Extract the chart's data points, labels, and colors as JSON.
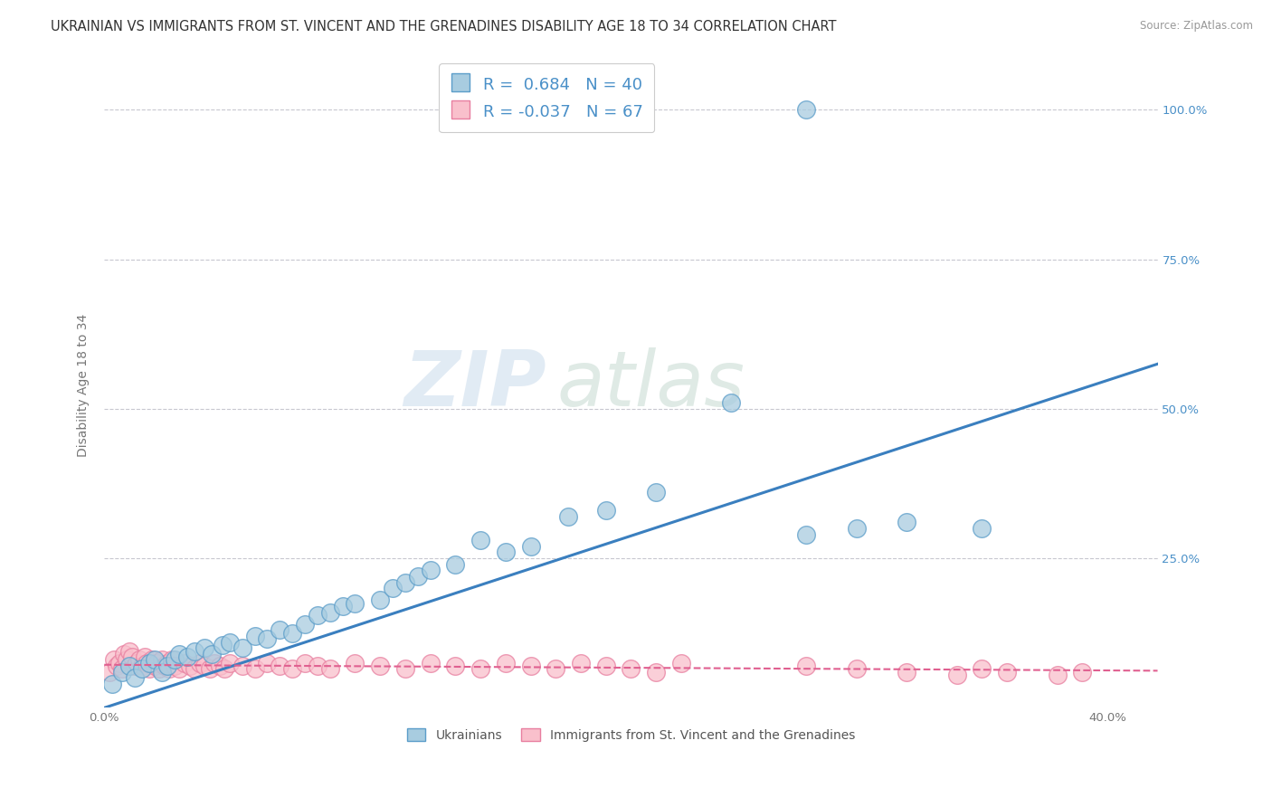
{
  "title": "UKRAINIAN VS IMMIGRANTS FROM ST. VINCENT AND THE GRENADINES DISABILITY AGE 18 TO 34 CORRELATION CHART",
  "source": "Source: ZipAtlas.com",
  "ylabel": "Disability Age 18 to 34",
  "xlim": [
    0.0,
    0.42
  ],
  "ylim": [
    0.0,
    1.08
  ],
  "xticks": [
    0.0,
    0.1,
    0.2,
    0.3,
    0.4
  ],
  "xticklabels": [
    "0.0%",
    "",
    "",
    "",
    "40.0%"
  ],
  "yticks": [
    0.0,
    0.25,
    0.5,
    0.75,
    1.0
  ],
  "right_yticklabels": [
    "",
    "25.0%",
    "50.0%",
    "75.0%",
    "100.0%"
  ],
  "blue_color": "#a8cce0",
  "pink_color": "#f9c0cc",
  "blue_edge_color": "#5b9dc9",
  "pink_edge_color": "#e87fa0",
  "blue_line_color": "#3a7fbf",
  "pink_line_color": "#e06090",
  "watermark_zip": "ZIP",
  "watermark_atlas": "atlas",
  "background_color": "#ffffff",
  "grid_color": "#c8c8d0",
  "title_fontsize": 10.5,
  "axis_fontsize": 10,
  "tick_fontsize": 9.5,
  "right_tick_color": "#4a90c8",
  "blue_scatter_x": [
    0.003,
    0.007,
    0.01,
    0.012,
    0.015,
    0.018,
    0.02,
    0.023,
    0.025,
    0.028,
    0.03,
    0.033,
    0.036,
    0.04,
    0.043,
    0.047,
    0.05,
    0.055,
    0.06,
    0.065,
    0.07,
    0.075,
    0.08,
    0.085,
    0.09,
    0.095,
    0.1,
    0.11,
    0.115,
    0.12,
    0.125,
    0.13,
    0.14,
    0.15,
    0.16,
    0.17,
    0.185,
    0.2,
    0.22,
    0.25,
    0.28,
    0.3,
    0.32,
    0.35,
    0.28
  ],
  "blue_scatter_y": [
    0.04,
    0.06,
    0.07,
    0.05,
    0.065,
    0.075,
    0.08,
    0.06,
    0.07,
    0.08,
    0.09,
    0.085,
    0.095,
    0.1,
    0.09,
    0.105,
    0.11,
    0.1,
    0.12,
    0.115,
    0.13,
    0.125,
    0.14,
    0.155,
    0.16,
    0.17,
    0.175,
    0.18,
    0.2,
    0.21,
    0.22,
    0.23,
    0.24,
    0.28,
    0.26,
    0.27,
    0.32,
    0.33,
    0.36,
    0.51,
    0.29,
    0.3,
    0.31,
    0.3,
    1.0
  ],
  "pink_scatter_x": [
    0.002,
    0.004,
    0.005,
    0.006,
    0.007,
    0.008,
    0.009,
    0.01,
    0.011,
    0.012,
    0.013,
    0.014,
    0.015,
    0.016,
    0.017,
    0.018,
    0.019,
    0.02,
    0.021,
    0.022,
    0.023,
    0.024,
    0.025,
    0.026,
    0.027,
    0.028,
    0.03,
    0.032,
    0.034,
    0.036,
    0.038,
    0.04,
    0.042,
    0.044,
    0.046,
    0.048,
    0.05,
    0.055,
    0.06,
    0.065,
    0.07,
    0.075,
    0.08,
    0.085,
    0.09,
    0.1,
    0.11,
    0.12,
    0.13,
    0.14,
    0.15,
    0.16,
    0.17,
    0.18,
    0.19,
    0.2,
    0.21,
    0.22,
    0.23,
    0.28,
    0.3,
    0.32,
    0.34,
    0.35,
    0.36,
    0.38,
    0.39
  ],
  "pink_scatter_y": [
    0.06,
    0.08,
    0.07,
    0.075,
    0.065,
    0.09,
    0.08,
    0.095,
    0.085,
    0.07,
    0.075,
    0.08,
    0.07,
    0.085,
    0.075,
    0.065,
    0.08,
    0.07,
    0.075,
    0.065,
    0.08,
    0.07,
    0.075,
    0.065,
    0.08,
    0.07,
    0.065,
    0.075,
    0.07,
    0.065,
    0.075,
    0.07,
    0.065,
    0.075,
    0.07,
    0.065,
    0.075,
    0.07,
    0.065,
    0.075,
    0.07,
    0.065,
    0.075,
    0.07,
    0.065,
    0.075,
    0.07,
    0.065,
    0.075,
    0.07,
    0.065,
    0.075,
    0.07,
    0.065,
    0.075,
    0.07,
    0.065,
    0.06,
    0.075,
    0.07,
    0.065,
    0.06,
    0.055,
    0.065,
    0.06,
    0.055,
    0.06
  ],
  "blue_line_x": [
    0.0,
    0.42
  ],
  "blue_line_y": [
    0.0,
    0.575
  ],
  "pink_line_x": [
    0.0,
    0.42
  ],
  "pink_line_y": [
    0.072,
    0.062
  ]
}
